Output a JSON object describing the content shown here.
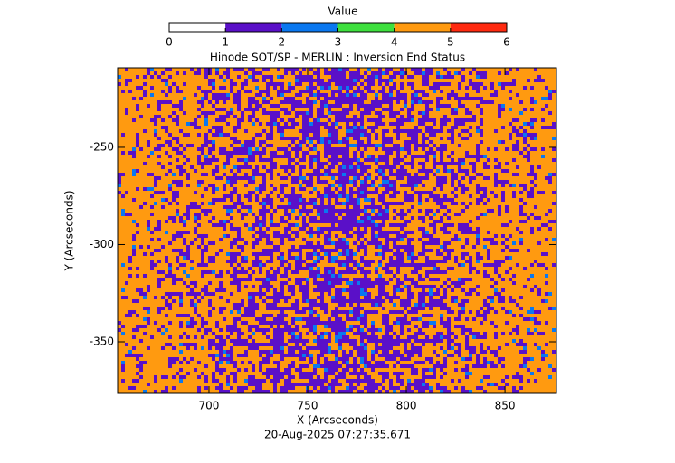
{
  "chart_data": {
    "type": "heatmap",
    "title": "Hinode SOT/SP - MERLIN : Inversion End Status",
    "xlabel": "X (Arcseconds)",
    "ylabel": "Y (Arcseconds)",
    "footer": "20-Aug-2025 07:27:35.671",
    "xlim": [
      653.7,
      876.1
    ],
    "xticks": [
      700,
      750,
      800,
      850
    ],
    "ylim": [
      -376.5,
      -209.1
    ],
    "yticks": [
      -350,
      -300,
      -250
    ],
    "colorbar": {
      "label": "Value",
      "lim": [
        0,
        6
      ],
      "ticks": [
        0,
        1,
        2,
        3,
        4,
        5,
        6
      ],
      "colors": [
        "#ffffff",
        "#5a10c8",
        "#0a78f0",
        "#3ee03e",
        "#ff9a10",
        "#ff2a10"
      ]
    }
  }
}
